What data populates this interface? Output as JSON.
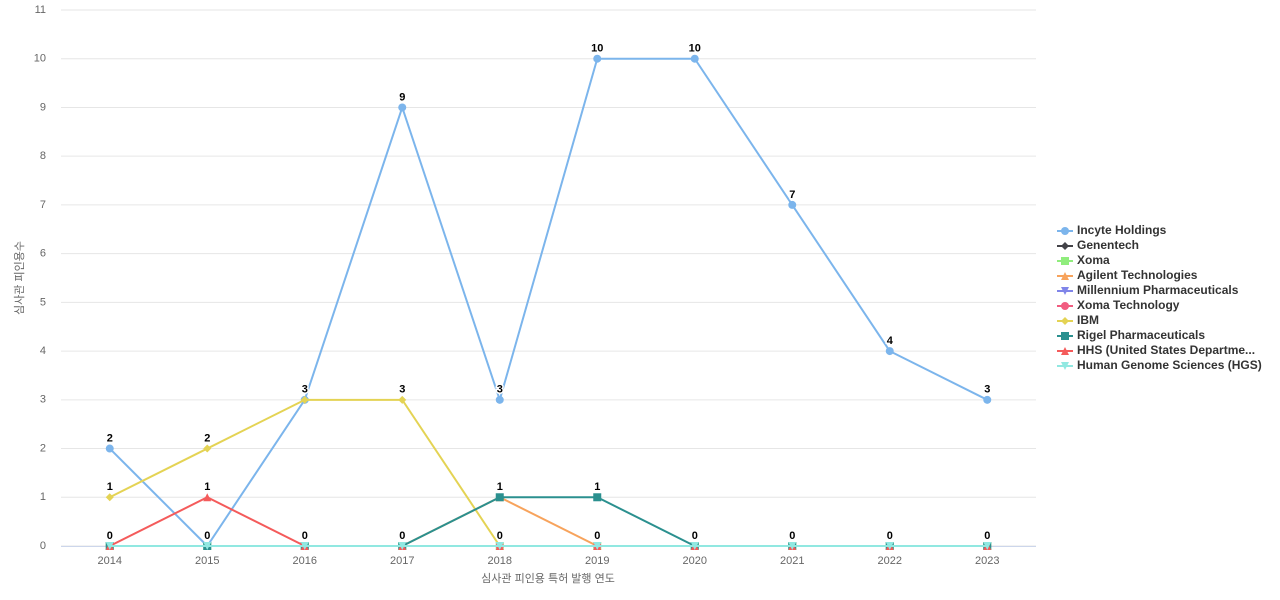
{
  "chart_data": {
    "type": "line",
    "x_label": "심사관 피인용 특허 발행 연도",
    "y_label": "심사관 피인용수",
    "categories": [
      "2014",
      "2015",
      "2016",
      "2017",
      "2018",
      "2019",
      "2020",
      "2021",
      "2022",
      "2023"
    ],
    "ylim": [
      0,
      11
    ],
    "yticks": [
      0,
      1,
      2,
      3,
      4,
      5,
      6,
      7,
      8,
      9,
      10,
      11
    ],
    "grid": true,
    "legend": "right",
    "series": [
      {
        "name": "Incyte Holdings",
        "color": "#7cb5ec",
        "marker": "circle",
        "values": [
          2,
          0,
          3,
          9,
          3,
          10,
          10,
          7,
          4,
          3
        ]
      },
      {
        "name": "Genentech",
        "color": "#434348",
        "marker": "diamond",
        "values": [
          0,
          0,
          0,
          0,
          0,
          0,
          0,
          0,
          0,
          0
        ]
      },
      {
        "name": "Xoma",
        "color": "#90ed7d",
        "marker": "square",
        "values": [
          0,
          0,
          0,
          0,
          0,
          0,
          0,
          0,
          0,
          0
        ]
      },
      {
        "name": "Agilent Technologies",
        "color": "#f7a35c",
        "marker": "triangle",
        "values": [
          0,
          0,
          0,
          0,
          1,
          0,
          0,
          0,
          0,
          0
        ]
      },
      {
        "name": "Millennium Pharmaceuticals",
        "color": "#8085e9",
        "marker": "triangle-down",
        "values": [
          0,
          0,
          0,
          0,
          0,
          0,
          0,
          0,
          0,
          0
        ]
      },
      {
        "name": "Xoma Technology",
        "color": "#f15c80",
        "marker": "circle",
        "values": [
          0,
          0,
          0,
          0,
          0,
          0,
          0,
          0,
          0,
          0
        ]
      },
      {
        "name": "IBM",
        "color": "#e4d354",
        "marker": "diamond",
        "values": [
          1,
          2,
          3,
          3,
          0,
          0,
          0,
          0,
          0,
          0
        ]
      },
      {
        "name": "Rigel Pharmaceuticals",
        "color": "#2b908f",
        "marker": "square",
        "values": [
          0,
          0,
          0,
          0,
          1,
          1,
          0,
          0,
          0,
          0
        ]
      },
      {
        "name": "HHS (United States Departme...",
        "color": "#f45b5b",
        "marker": "triangle",
        "values": [
          0,
          1,
          0,
          0,
          0,
          0,
          0,
          0,
          0,
          0
        ]
      },
      {
        "name": "Human Genome Sciences (HGS)",
        "color": "#91e8e1",
        "marker": "triangle-down",
        "values": [
          0,
          0,
          0,
          0,
          0,
          0,
          0,
          0,
          0,
          0
        ]
      }
    ]
  }
}
